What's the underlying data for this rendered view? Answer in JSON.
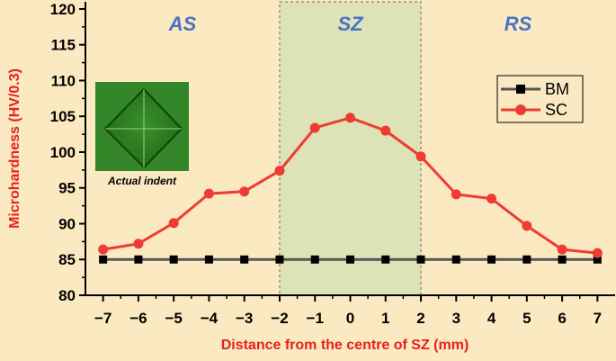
{
  "chart_data": {
    "type": "line",
    "title": "",
    "xlabel": "Distance from the centre of SZ (mm)",
    "ylabel": "Microhardness (HV/0.3)",
    "xlim": [
      -7.5,
      7.5
    ],
    "ylim": [
      80,
      121
    ],
    "x_ticks": [
      -7,
      -6,
      -5,
      -4,
      -3,
      -2,
      -1,
      0,
      1,
      2,
      3,
      4,
      5,
      6,
      7
    ],
    "x_tick_labels": [
      "−7",
      "−6",
      "−5",
      "−4",
      "−3",
      "−2",
      "−1",
      "0",
      "1",
      "2",
      "3",
      "4",
      "5",
      "6",
      "7"
    ],
    "y_ticks": [
      80,
      85,
      90,
      95,
      100,
      105,
      110,
      115,
      120
    ],
    "x": [
      -7,
      -6,
      -5,
      -4,
      -3,
      -2,
      -1,
      0,
      1,
      2,
      3,
      4,
      5,
      6,
      7
    ],
    "series": [
      {
        "name": "BM",
        "color": "#555555",
        "marker": "square",
        "marker_color": "#000000",
        "values": [
          85,
          85,
          85,
          85,
          85,
          85,
          85,
          85,
          85,
          85,
          85,
          85,
          85,
          85,
          85
        ]
      },
      {
        "name": "SC",
        "color": "#ee3b33",
        "marker": "circle",
        "marker_color": "#ee3b33",
        "values": [
          86.4,
          87.2,
          90.1,
          94.2,
          94.5,
          97.4,
          103.4,
          104.8,
          103.0,
          99.4,
          94.1,
          93.5,
          89.7,
          86.4,
          85.9
        ]
      }
    ],
    "regions": [
      {
        "label": "AS",
        "from": -7.5,
        "to": -2
      },
      {
        "label": "SZ",
        "from": -2,
        "to": 2,
        "highlight": true
      },
      {
        "label": "RS",
        "from": 2,
        "to": 7.5
      }
    ],
    "inset": {
      "caption": "Actual indent"
    },
    "legend_position": "top-right",
    "grid": false,
    "colors": {
      "background": "#fbe9c2",
      "highlight": "#dde3b6",
      "axis_title": "#e8201c",
      "region_label": "#4a72c4"
    }
  }
}
